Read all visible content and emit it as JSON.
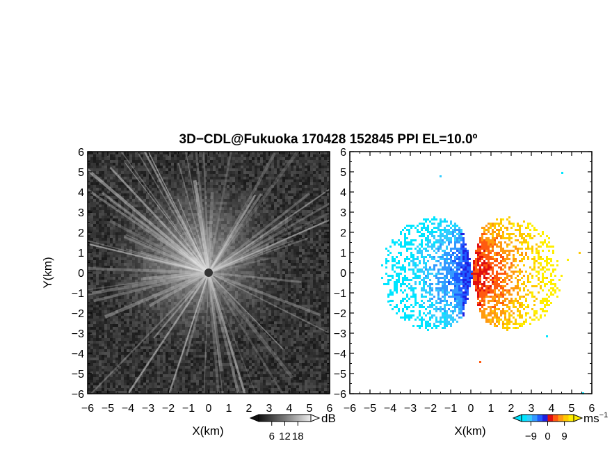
{
  "chart_data": [
    {
      "type": "heatmap",
      "title": "3D−CDL@Fukuoka 170428 152845 PPI EL=10.0º",
      "panel": "reflectivity",
      "xlabel": "X(km)",
      "ylabel": "Y(km)",
      "xlim": [
        -6,
        6
      ],
      "ylim": [
        -6,
        6
      ],
      "x_tick_labels": [
        "−6",
        "−5",
        "−4",
        "−3",
        "−2",
        "−1",
        "0",
        "1",
        "2",
        "3",
        "4",
        "5",
        "6"
      ],
      "y_tick_labels": [
        "6",
        "5",
        "4",
        "3",
        "2",
        "1",
        "0",
        "−1",
        "−2",
        "−3",
        "−4",
        "−5",
        "−6"
      ],
      "colormap": "grayscale",
      "colorbar": {
        "unit": "dB",
        "ticks": [
          "6",
          "12",
          "18"
        ],
        "range": [
          0,
          24
        ]
      }
    },
    {
      "type": "heatmap",
      "panel": "doppler velocity",
      "xlabel": "X(km)",
      "ylabel": "",
      "xlim": [
        -6,
        6
      ],
      "ylim": [
        -6,
        6
      ],
      "x_tick_labels": [
        "−6",
        "−5",
        "−4",
        "−3",
        "−2",
        "−1",
        "0",
        "1",
        "2",
        "3",
        "4",
        "5",
        "6"
      ],
      "y_tick_labels": [
        "6",
        "5",
        "4",
        "3",
        "2",
        "1",
        "0",
        "−1",
        "−2",
        "−3",
        "−4",
        "−5",
        "−6"
      ],
      "colormap": "blue-cyan / red-yellow diverging",
      "colorbar": {
        "unit": "ms",
        "unit_superscript": "−1",
        "ticks": [
          "−9",
          "0",
          "9"
        ],
        "range": [
          -14,
          14
        ]
      }
    }
  ],
  "colors": {
    "velocity_scale": [
      "#00e5ff",
      "#33ccff",
      "#3399ff",
      "#1f5bff",
      "#2020e0",
      "#e01010",
      "#ff5a10",
      "#ff9a10",
      "#ffc800",
      "#ffee00"
    ]
  }
}
